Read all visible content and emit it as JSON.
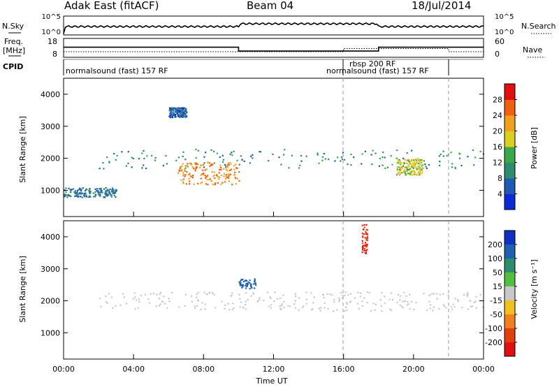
{
  "header": {
    "station": "Adak East (fitACF)",
    "beam": "Beam 04",
    "date": "18/Jul/2014"
  },
  "noise_panel": {
    "left_label": "N.Sky",
    "left_ticks": [
      "10^5",
      "10^0"
    ],
    "right_label": "N.Search",
    "right_ticks": [
      "10^5",
      "10^0"
    ]
  },
  "freq_panel": {
    "left_label_1": "Freq.",
    "left_label_2": "[MHz]",
    "left_ticks": [
      "18",
      "8"
    ],
    "right_label": "Nave",
    "right_ticks": [
      "60",
      "0"
    ]
  },
  "cpid": {
    "label": "CPID",
    "modes": [
      {
        "text": "normalsound (fast) 157 RF"
      },
      {
        "text": "rbsp 200 RF"
      },
      {
        "text": "normalsound (fast) 157 RF"
      }
    ]
  },
  "time_axis": {
    "label": "Time UT",
    "ticks": [
      "00:00",
      "04:00",
      "08:00",
      "12:00",
      "16:00",
      "20:00",
      "00:00"
    ]
  },
  "range_axis": {
    "label": "Slant Range [km]",
    "ticks": [
      "1000",
      "2000",
      "3000",
      "4000"
    ]
  },
  "power_colorbar": {
    "label": "Power [dB]",
    "ticks": [
      "4",
      "8",
      "12",
      "16",
      "20",
      "24",
      "28"
    ],
    "colors": [
      "#0a2bd6",
      "#1e5ab4",
      "#2e8b6e",
      "#3aa84a",
      "#d8d020",
      "#f0a020",
      "#f06010",
      "#e01010"
    ]
  },
  "velocity_colorbar": {
    "label": "Velocity [m s⁻¹]",
    "ticks": [
      "200",
      "100",
      "50",
      "15",
      "-15",
      "-50",
      "-100",
      "-200"
    ],
    "colors": [
      "#1030c0",
      "#2060b0",
      "#2e8b6e",
      "#50c040",
      "#c8c8c8",
      "#f0c020",
      "#f08020",
      "#e04010",
      "#e01010"
    ]
  },
  "chart_data": {
    "type": "heatmap",
    "title": "Adak East (fitACF) Beam 04 18/Jul/2014",
    "xlabel": "Time UT",
    "ylabel": "Slant Range [km]",
    "xlim": [
      "00:00",
      "24:00"
    ],
    "ylim": [
      180,
      4500
    ],
    "frequency_mhz": [
      {
        "from": "00:00",
        "to": "10:00",
        "value": 13.5
      },
      {
        "from": "10:00",
        "to": "18:00",
        "value": 10.6
      },
      {
        "from": "18:00",
        "to": "24:00",
        "value": 13.5
      }
    ],
    "nave": [
      {
        "from": "00:00",
        "to": "16:00",
        "value": 0
      },
      {
        "from": "16:00",
        "to": "22:00",
        "value": 15
      },
      {
        "from": "22:00",
        "to": "24:00",
        "value": 0
      }
    ],
    "cpid_segments": [
      {
        "label": "normalsound (fast) 157 RF",
        "from": "00:00",
        "to": "16:00"
      },
      {
        "label": "rbsp 200 RF",
        "from": "16:00",
        "to": "22:00"
      },
      {
        "label": "normalsound (fast) 157 RF",
        "from": "22:00",
        "to": "24:00"
      }
    ],
    "power_features": [
      {
        "name": "early-band",
        "from": "00:00",
        "to": "03:00",
        "range_km": [
          800,
          1100
        ],
        "power_db": 8
      },
      {
        "name": "main-band",
        "from": "02:00",
        "to": "24:00",
        "range_km": [
          1700,
          2300
        ],
        "power_db": 10
      },
      {
        "name": "strong-echo-am",
        "from": "06:30",
        "to": "10:00",
        "range_km": [
          1200,
          1900
        ],
        "power_db": 24
      },
      {
        "name": "strong-echo-pm",
        "from": "19:00",
        "to": "20:30",
        "range_km": [
          1500,
          2000
        ],
        "power_db": 18
      },
      {
        "name": "high-patch",
        "from": "06:00",
        "to": "07:00",
        "range_km": [
          3300,
          3600
        ],
        "power_db": 6
      }
    ],
    "velocity_features": [
      {
        "name": "main-band",
        "from": "02:00",
        "to": "24:00",
        "range_km": [
          1700,
          2300
        ],
        "velocity_ms": 0
      },
      {
        "name": "positive-patch",
        "from": "10:00",
        "to": "11:00",
        "range_km": [
          2400,
          2700
        ],
        "velocity_ms": 150
      },
      {
        "name": "negative-streak",
        "from": "17:00",
        "to": "17:20",
        "range_km": [
          3500,
          4400
        ],
        "velocity_ms": -200
      }
    ]
  }
}
